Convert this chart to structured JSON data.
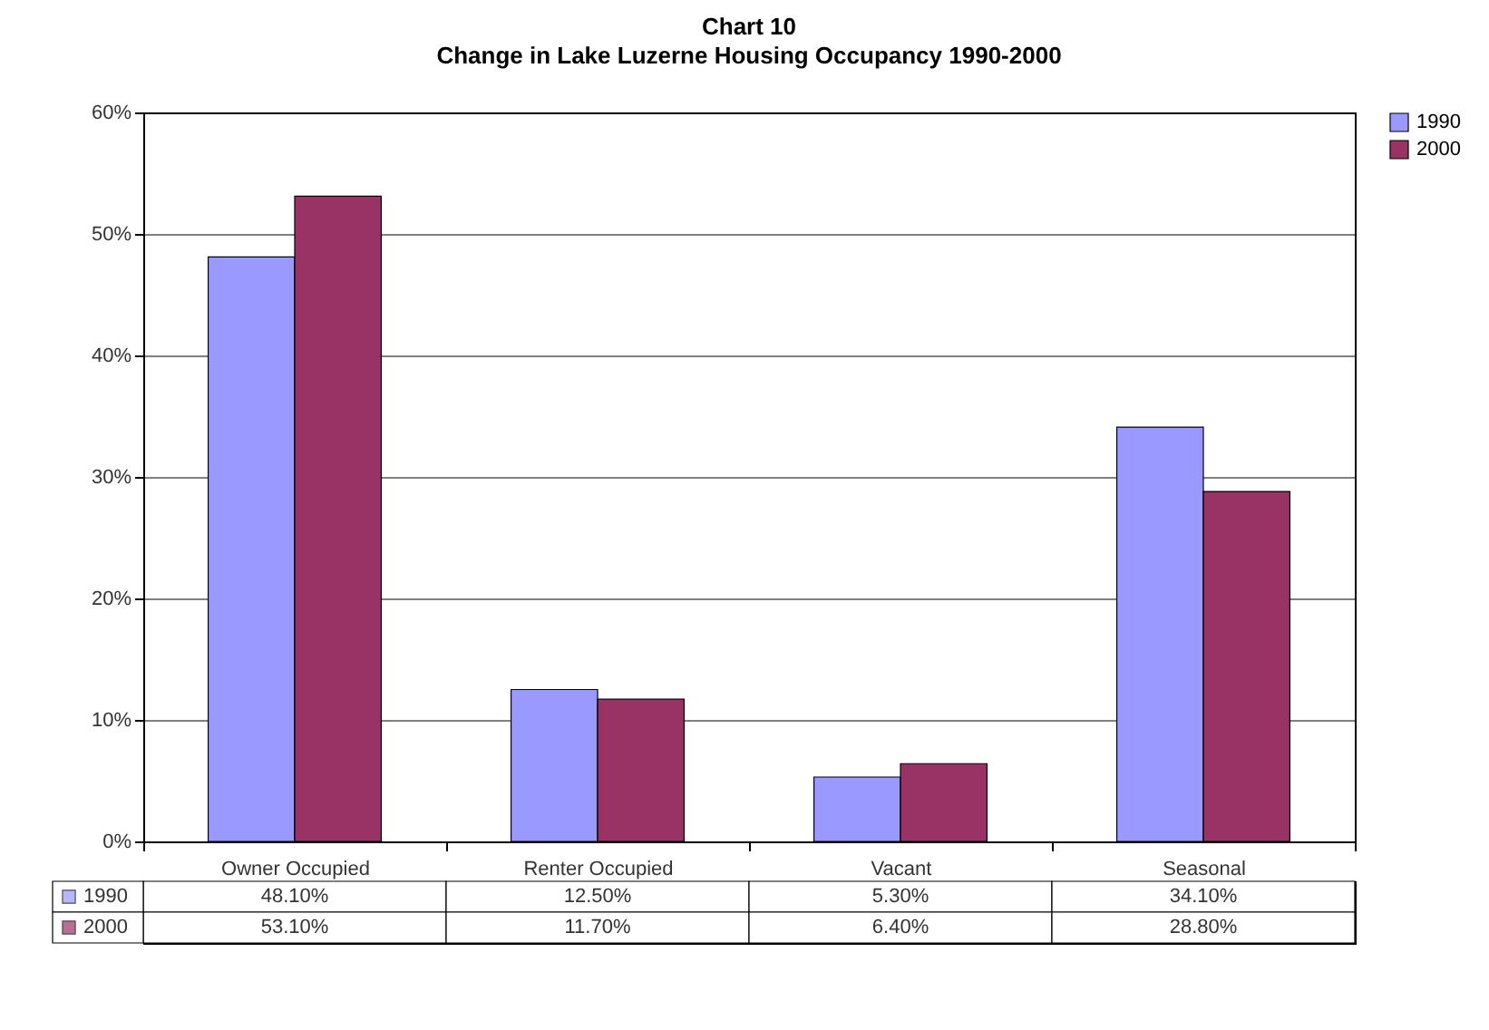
{
  "chart_data": {
    "type": "bar",
    "title": "Chart 10",
    "subtitle": "Change in Lake Luzerne Housing Occupancy 1990-2000",
    "categories": [
      "Owner Occupied",
      "Renter Occupied",
      "Vacant",
      "Seasonal"
    ],
    "series": [
      {
        "name": "1990",
        "color": "#9999ff",
        "values": [
          48.1,
          12.5,
          5.3,
          34.1
        ],
        "value_labels": [
          "48.10%",
          "12.50%",
          "5.30%",
          "34.10%"
        ]
      },
      {
        "name": "2000",
        "color": "#993366",
        "values": [
          53.1,
          11.7,
          6.4,
          28.8
        ],
        "value_labels": [
          "53.10%",
          "11.70%",
          "6.40%",
          "28.80%"
        ]
      }
    ],
    "ylim": [
      0,
      60
    ],
    "yticks": [
      {
        "value": 0,
        "label": "0%"
      },
      {
        "value": 10,
        "label": "10%"
      },
      {
        "value": 20,
        "label": "20%"
      },
      {
        "value": 30,
        "label": "30%"
      },
      {
        "value": 40,
        "label": "40%"
      },
      {
        "value": 50,
        "label": "50%"
      },
      {
        "value": 60,
        "label": "60%"
      }
    ],
    "grid": "y",
    "legend": "right"
  }
}
